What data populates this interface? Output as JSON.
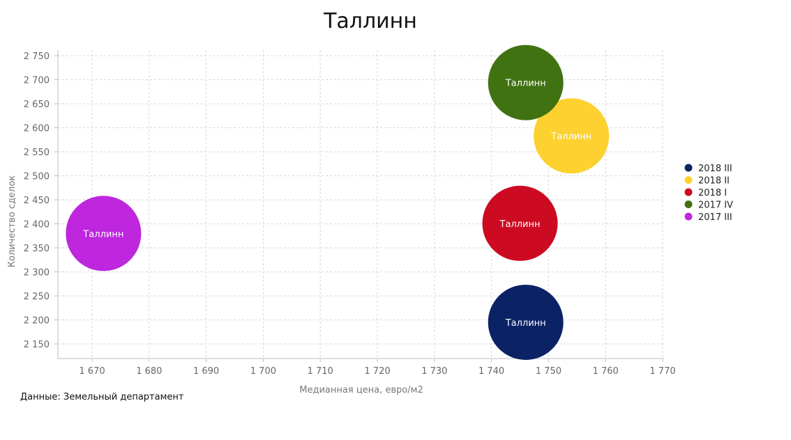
{
  "chart_data": {
    "type": "scatter",
    "title": "Таллинн",
    "xlabel": "Медианная цена, евро/м2",
    "ylabel": "Количество сделок",
    "xlim": [
      1665,
      1770
    ],
    "ylim": [
      2120,
      2760
    ],
    "x_ticks": [
      1670,
      1680,
      1690,
      1700,
      1710,
      1720,
      1730,
      1740,
      1750,
      1760,
      1770
    ],
    "y_ticks": [
      2150,
      2200,
      2250,
      2300,
      2350,
      2400,
      2450,
      2500,
      2550,
      2600,
      2650,
      2700,
      2750
    ],
    "x_tick_labels": [
      "1 670",
      "1 680",
      "1 690",
      "1 700",
      "1 710",
      "1 720",
      "1 730",
      "1 740",
      "1 750",
      "1 760",
      "1 770"
    ],
    "y_tick_labels": [
      "2 150",
      "2 200",
      "2 250",
      "2 300",
      "2 350",
      "2 400",
      "2 450",
      "2 500",
      "2 550",
      "2 600",
      "2 650",
      "2 700",
      "2 750"
    ],
    "grid": true,
    "legend_position": "right",
    "series": [
      {
        "name": "2018 III",
        "color": "#0b2265",
        "points": [
          {
            "x": 1746,
            "y": 2195,
            "label": "Таллинн"
          }
        ]
      },
      {
        "name": "2018 II",
        "color": "#fdd12f",
        "points": [
          {
            "x": 1754,
            "y": 2583,
            "label": "Таллинн"
          }
        ]
      },
      {
        "name": "2018 I",
        "color": "#cc0a22",
        "points": [
          {
            "x": 1745,
            "y": 2401,
            "label": "Таллинн"
          }
        ]
      },
      {
        "name": "2017 IV",
        "color": "#417212",
        "points": [
          {
            "x": 1746,
            "y": 2694,
            "label": "Таллинн"
          }
        ]
      },
      {
        "name": "2017 III",
        "color": "#be27de",
        "points": [
          {
            "x": 1672,
            "y": 2380,
            "label": "Таллинн"
          }
        ]
      }
    ]
  },
  "source_note": "Данные: Земельный департамент"
}
